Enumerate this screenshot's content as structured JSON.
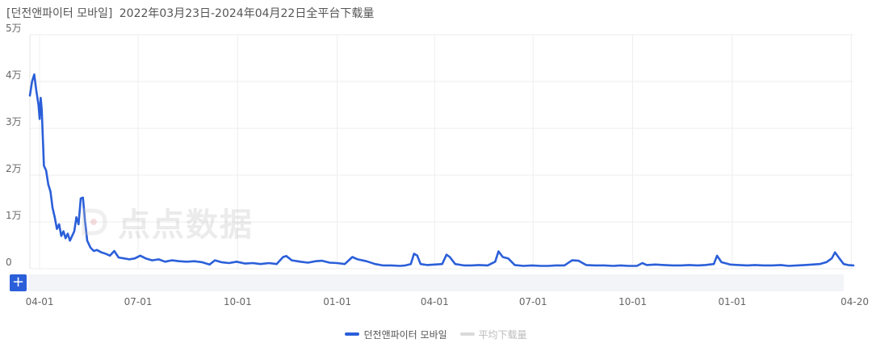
{
  "header": {
    "app_name": "[던전앤파이터 모바일]",
    "range_text": "2022年03月23日-2024年04月22日全平台下载量"
  },
  "watermark": {
    "text": "点点数据"
  },
  "controls": {
    "expand_label": "+"
  },
  "legend": [
    {
      "label": "던전앤파이터 모바일",
      "color": "#2b5fd9",
      "active": true
    },
    {
      "label": "平均下载量",
      "color": "#d9d9d9",
      "active": false
    }
  ],
  "chart_data": {
    "type": "line",
    "title": "[던전앤파이터 모바일] 2022年03月23日-2024年04月22日全平台下载量",
    "ylim": [
      0,
      50000
    ],
    "y_ticks": [
      {
        "value": 0,
        "label": "0"
      },
      {
        "value": 10000,
        "label": "1万"
      },
      {
        "value": 20000,
        "label": "2万"
      },
      {
        "value": 30000,
        "label": "3万"
      },
      {
        "value": 40000,
        "label": "4万"
      },
      {
        "value": 50000,
        "label": "5万"
      }
    ],
    "x_ticks": [
      {
        "date": "2022-04-01",
        "label": "04-01"
      },
      {
        "date": "2022-07-01",
        "label": "07-01"
      },
      {
        "date": "2022-10-01",
        "label": "10-01"
      },
      {
        "date": "2023-01-01",
        "label": "01-01"
      },
      {
        "date": "2023-04-01",
        "label": "04-01"
      },
      {
        "date": "2023-07-01",
        "label": "07-01"
      },
      {
        "date": "2023-10-01",
        "label": "10-01"
      },
      {
        "date": "2024-01-01",
        "label": "01-01"
      },
      {
        "date": "2024-04-20",
        "label": "04-20"
      }
    ],
    "x_range": [
      "2022-03-23",
      "2024-04-22"
    ],
    "grid": true,
    "legend_position": "bottom",
    "series": [
      {
        "name": "던전앤파이터 모바일",
        "color": "#2b5fd9",
        "points": [
          [
            "2022-03-23",
            37000
          ],
          [
            "2022-03-25",
            40000
          ],
          [
            "2022-03-27",
            41500
          ],
          [
            "2022-03-29",
            38000
          ],
          [
            "2022-03-31",
            35000
          ],
          [
            "2022-04-01",
            32000
          ],
          [
            "2022-04-02",
            36500
          ],
          [
            "2022-04-03",
            34000
          ],
          [
            "2022-04-05",
            22000
          ],
          [
            "2022-04-07",
            21000
          ],
          [
            "2022-04-09",
            18000
          ],
          [
            "2022-04-11",
            16500
          ],
          [
            "2022-04-13",
            13000
          ],
          [
            "2022-04-15",
            11000
          ],
          [
            "2022-04-17",
            8500
          ],
          [
            "2022-04-19",
            9500
          ],
          [
            "2022-04-21",
            7000
          ],
          [
            "2022-04-23",
            8000
          ],
          [
            "2022-04-25",
            6500
          ],
          [
            "2022-04-27",
            7500
          ],
          [
            "2022-04-29",
            6000
          ],
          [
            "2022-05-01",
            7000
          ],
          [
            "2022-05-03",
            8000
          ],
          [
            "2022-05-05",
            11000
          ],
          [
            "2022-05-07",
            9500
          ],
          [
            "2022-05-09",
            15000
          ],
          [
            "2022-05-11",
            15200
          ],
          [
            "2022-05-13",
            10000
          ],
          [
            "2022-05-15",
            6000
          ],
          [
            "2022-05-18",
            4500
          ],
          [
            "2022-05-21",
            3800
          ],
          [
            "2022-05-24",
            4000
          ],
          [
            "2022-05-28",
            3500
          ],
          [
            "2022-06-01",
            3200
          ],
          [
            "2022-06-05",
            2800
          ],
          [
            "2022-06-09",
            3800
          ],
          [
            "2022-06-13",
            2400
          ],
          [
            "2022-06-18",
            2200
          ],
          [
            "2022-06-23",
            2000
          ],
          [
            "2022-06-28",
            2200
          ],
          [
            "2022-07-03",
            2800
          ],
          [
            "2022-07-08",
            2200
          ],
          [
            "2022-07-14",
            1800
          ],
          [
            "2022-07-20",
            2000
          ],
          [
            "2022-07-26",
            1500
          ],
          [
            "2022-08-01",
            1800
          ],
          [
            "2022-08-08",
            1600
          ],
          [
            "2022-08-15",
            1500
          ],
          [
            "2022-08-22",
            1600
          ],
          [
            "2022-08-29",
            1400
          ],
          [
            "2022-09-05",
            900
          ],
          [
            "2022-09-10",
            1800
          ],
          [
            "2022-09-16",
            1400
          ],
          [
            "2022-09-23",
            1200
          ],
          [
            "2022-09-30",
            1500
          ],
          [
            "2022-10-08",
            1100
          ],
          [
            "2022-10-15",
            1200
          ],
          [
            "2022-10-22",
            1000
          ],
          [
            "2022-10-30",
            1200
          ],
          [
            "2022-11-06",
            1000
          ],
          [
            "2022-11-12",
            2500
          ],
          [
            "2022-11-15",
            2700
          ],
          [
            "2022-11-20",
            1800
          ],
          [
            "2022-11-28",
            1500
          ],
          [
            "2022-12-05",
            1300
          ],
          [
            "2022-12-12",
            1600
          ],
          [
            "2022-12-18",
            1700
          ],
          [
            "2022-12-25",
            1300
          ],
          [
            "2023-01-01",
            1200
          ],
          [
            "2023-01-08",
            1000
          ],
          [
            "2023-01-15",
            2500
          ],
          [
            "2023-01-20",
            2000
          ],
          [
            "2023-01-28",
            1600
          ],
          [
            "2023-02-05",
            1000
          ],
          [
            "2023-02-12",
            700
          ],
          [
            "2023-02-20",
            700
          ],
          [
            "2023-02-28",
            600
          ],
          [
            "2023-03-05",
            700
          ],
          [
            "2023-03-10",
            1000
          ],
          [
            "2023-03-13",
            3200
          ],
          [
            "2023-03-16",
            2800
          ],
          [
            "2023-03-19",
            1000
          ],
          [
            "2023-03-25",
            800
          ],
          [
            "2023-04-01",
            900
          ],
          [
            "2023-04-08",
            1000
          ],
          [
            "2023-04-12",
            3000
          ],
          [
            "2023-04-15",
            2500
          ],
          [
            "2023-04-20",
            1000
          ],
          [
            "2023-04-28",
            700
          ],
          [
            "2023-05-05",
            700
          ],
          [
            "2023-05-12",
            800
          ],
          [
            "2023-05-20",
            700
          ],
          [
            "2023-05-27",
            1500
          ],
          [
            "2023-05-30",
            3700
          ],
          [
            "2023-06-03",
            2500
          ],
          [
            "2023-06-08",
            2200
          ],
          [
            "2023-06-14",
            800
          ],
          [
            "2023-06-22",
            600
          ],
          [
            "2023-06-30",
            700
          ],
          [
            "2023-07-08",
            600
          ],
          [
            "2023-07-15",
            600
          ],
          [
            "2023-07-22",
            700
          ],
          [
            "2023-07-30",
            700
          ],
          [
            "2023-08-06",
            1800
          ],
          [
            "2023-08-12",
            1700
          ],
          [
            "2023-08-19",
            800
          ],
          [
            "2023-08-27",
            700
          ],
          [
            "2023-09-05",
            700
          ],
          [
            "2023-09-13",
            600
          ],
          [
            "2023-09-20",
            700
          ],
          [
            "2023-09-27",
            600
          ],
          [
            "2023-10-05",
            600
          ],
          [
            "2023-10-10",
            1200
          ],
          [
            "2023-10-14",
            800
          ],
          [
            "2023-10-22",
            900
          ],
          [
            "2023-10-30",
            800
          ],
          [
            "2023-11-07",
            700
          ],
          [
            "2023-11-15",
            700
          ],
          [
            "2023-11-22",
            800
          ],
          [
            "2023-11-30",
            700
          ],
          [
            "2023-12-07",
            800
          ],
          [
            "2023-12-15",
            1000
          ],
          [
            "2023-12-18",
            2800
          ],
          [
            "2023-12-22",
            1400
          ],
          [
            "2023-12-30",
            900
          ],
          [
            "2024-01-07",
            800
          ],
          [
            "2024-01-15",
            700
          ],
          [
            "2024-01-22",
            800
          ],
          [
            "2024-01-30",
            700
          ],
          [
            "2024-02-07",
            700
          ],
          [
            "2024-02-15",
            800
          ],
          [
            "2024-02-22",
            600
          ],
          [
            "2024-03-01",
            700
          ],
          [
            "2024-03-08",
            800
          ],
          [
            "2024-03-15",
            900
          ],
          [
            "2024-03-22",
            1000
          ],
          [
            "2024-03-28",
            1400
          ],
          [
            "2024-04-02",
            2200
          ],
          [
            "2024-04-05",
            3500
          ],
          [
            "2024-04-09",
            2200
          ],
          [
            "2024-04-13",
            1000
          ],
          [
            "2024-04-17",
            800
          ],
          [
            "2024-04-22",
            700
          ]
        ]
      }
    ]
  }
}
